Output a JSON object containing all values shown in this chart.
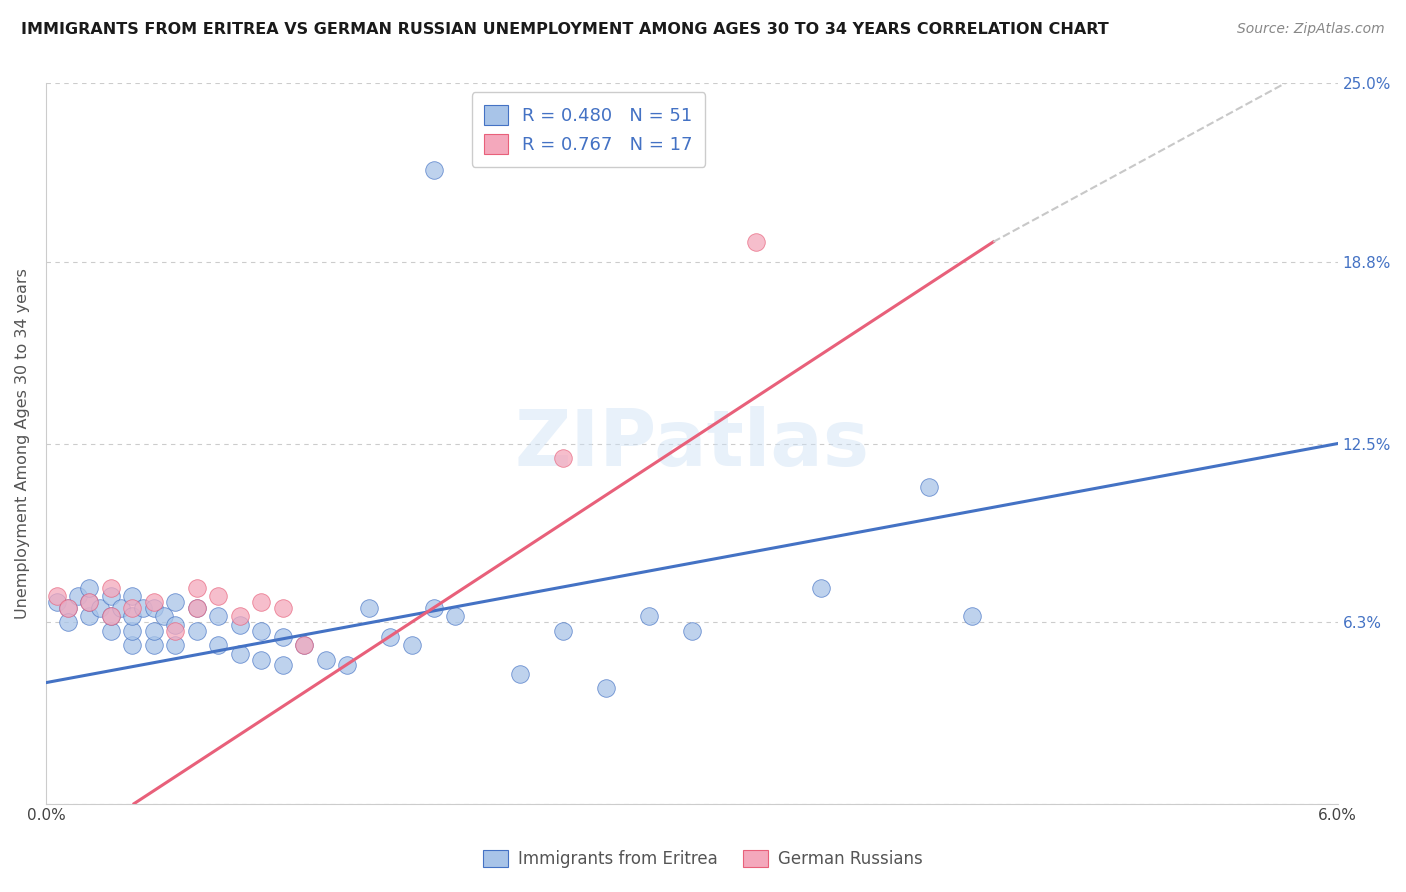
{
  "title": "IMMIGRANTS FROM ERITREA VS GERMAN RUSSIAN UNEMPLOYMENT AMONG AGES 30 TO 34 YEARS CORRELATION CHART",
  "source": "Source: ZipAtlas.com",
  "ylabel": "Unemployment Among Ages 30 to 34 years",
  "xlim": [
    0.0,
    0.06
  ],
  "ylim": [
    0.0,
    0.25
  ],
  "xticks": [
    0.0,
    0.01,
    0.02,
    0.03,
    0.04,
    0.05,
    0.06
  ],
  "xticklabels": [
    "0.0%",
    "",
    "",
    "",
    "",
    "",
    "6.0%"
  ],
  "ytick_positions": [
    0.0,
    0.063,
    0.125,
    0.188,
    0.25
  ],
  "yticklabels": [
    "",
    "6.3%",
    "12.5%",
    "18.8%",
    "25.0%"
  ],
  "watermark": "ZIPatlas",
  "legend_r1": "R = 0.480",
  "legend_n1": "N = 51",
  "legend_r2": "R = 0.767",
  "legend_n2": "N = 17",
  "color_eritrea": "#a8c4e8",
  "color_german": "#f4a8bc",
  "color_line_eritrea": "#4472c4",
  "color_line_german": "#e8607a",
  "color_line_ext": "#c8c8c8",
  "background": "#ffffff",
  "line_eritrea": [
    0.0,
    0.042,
    0.06,
    0.125
  ],
  "line_german_solid": [
    0.0,
    -0.02,
    0.044,
    0.195
  ],
  "line_german_ext": [
    0.044,
    0.195,
    0.06,
    0.26
  ],
  "eritrea_x": [
    0.0005,
    0.001,
    0.001,
    0.0015,
    0.002,
    0.002,
    0.002,
    0.0025,
    0.003,
    0.003,
    0.003,
    0.0035,
    0.004,
    0.004,
    0.004,
    0.004,
    0.0045,
    0.005,
    0.005,
    0.005,
    0.0055,
    0.006,
    0.006,
    0.006,
    0.007,
    0.007,
    0.008,
    0.008,
    0.009,
    0.009,
    0.01,
    0.01,
    0.011,
    0.011,
    0.012,
    0.013,
    0.014,
    0.015,
    0.016,
    0.017,
    0.018,
    0.019,
    0.022,
    0.024,
    0.026,
    0.028,
    0.03,
    0.036,
    0.041,
    0.043,
    0.018
  ],
  "eritrea_y": [
    0.07,
    0.068,
    0.063,
    0.072,
    0.065,
    0.07,
    0.075,
    0.068,
    0.06,
    0.065,
    0.072,
    0.068,
    0.055,
    0.06,
    0.065,
    0.072,
    0.068,
    0.055,
    0.06,
    0.068,
    0.065,
    0.055,
    0.062,
    0.07,
    0.06,
    0.068,
    0.055,
    0.065,
    0.052,
    0.062,
    0.05,
    0.06,
    0.048,
    0.058,
    0.055,
    0.05,
    0.048,
    0.068,
    0.058,
    0.055,
    0.068,
    0.065,
    0.045,
    0.06,
    0.04,
    0.065,
    0.06,
    0.075,
    0.11,
    0.065,
    0.22
  ],
  "german_x": [
    0.0005,
    0.001,
    0.002,
    0.003,
    0.003,
    0.004,
    0.005,
    0.006,
    0.007,
    0.007,
    0.008,
    0.009,
    0.01,
    0.011,
    0.012,
    0.024,
    0.033
  ],
  "german_y": [
    0.072,
    0.068,
    0.07,
    0.065,
    0.075,
    0.068,
    0.07,
    0.06,
    0.075,
    0.068,
    0.072,
    0.065,
    0.07,
    0.068,
    0.055,
    0.12,
    0.195
  ],
  "footnote_eritrea": "Immigrants from Eritrea",
  "footnote_german": "German Russians"
}
